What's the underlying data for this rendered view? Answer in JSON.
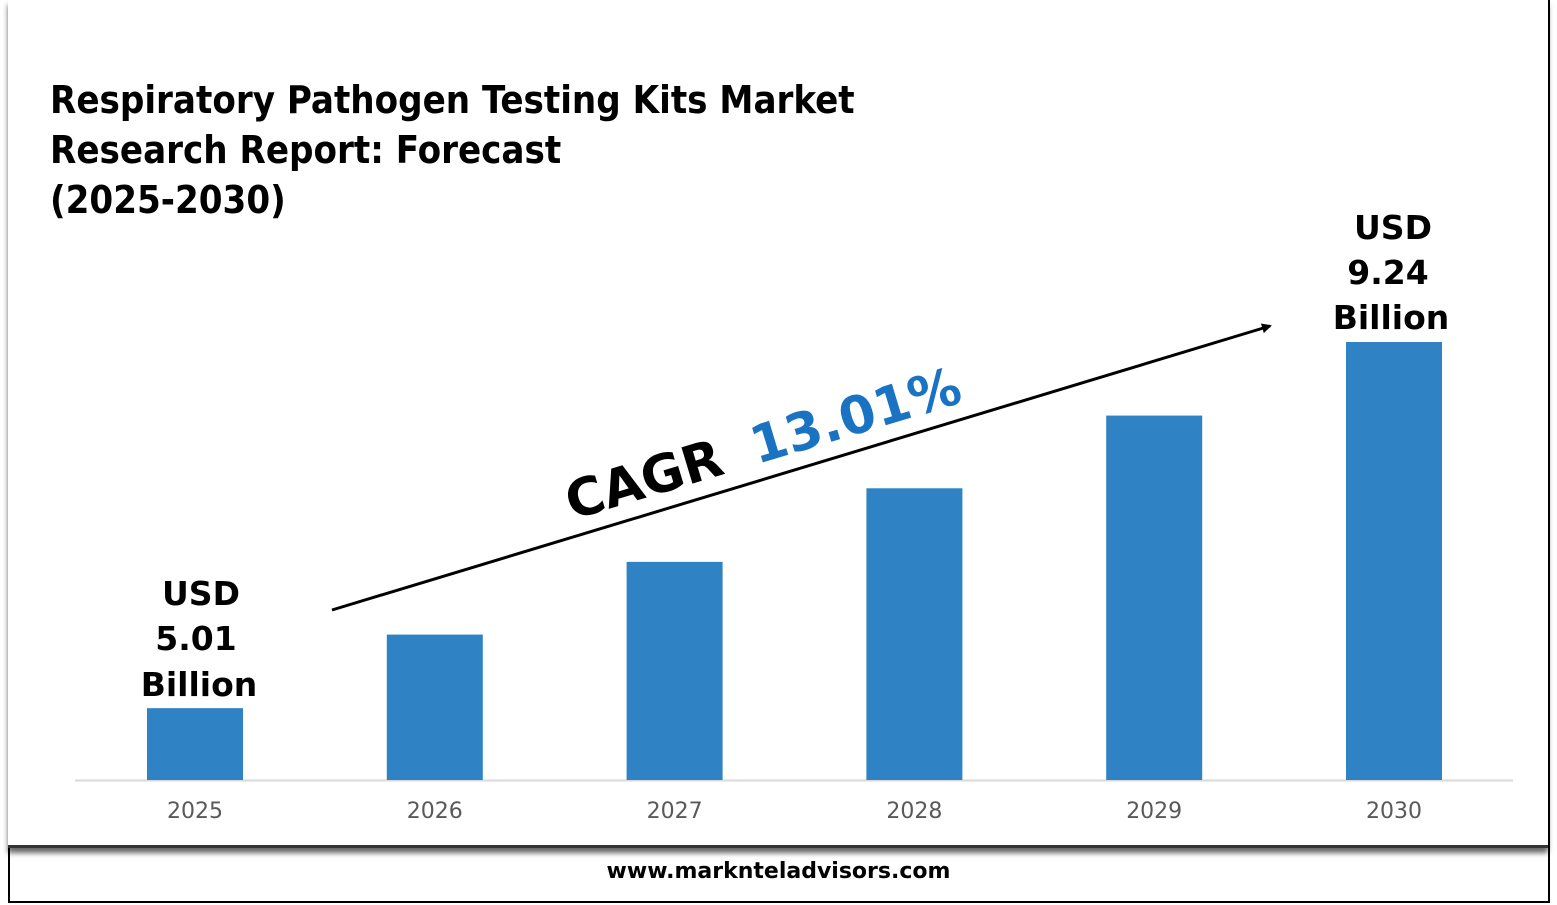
{
  "chart_data": {
    "type": "bar",
    "title_lines": [
      "Respiratory Pathogen Testing Kits Market",
      "Research Report: Forecast",
      "(2025-2030)"
    ],
    "categories": [
      "2025",
      "2026",
      "2027",
      "2028",
      "2029",
      "2030"
    ],
    "values": [
      5.01,
      5.86,
      6.7,
      7.55,
      8.39,
      9.24
    ],
    "unit": "USD Billion",
    "ylim": [
      4.18,
      9.24
    ],
    "bar_color": "#2f83c4",
    "grid": false,
    "annotations": {
      "start_label": [
        "USD",
        "5.01",
        "Billion"
      ],
      "end_label": [
        "USD",
        "9.24",
        "Billion"
      ],
      "cagr_prefix": "CAGR",
      "cagr_value": "13.01%",
      "cagr_color": "#1a73c2"
    }
  },
  "footer": {
    "website": "www.marknteladvisors.com"
  }
}
